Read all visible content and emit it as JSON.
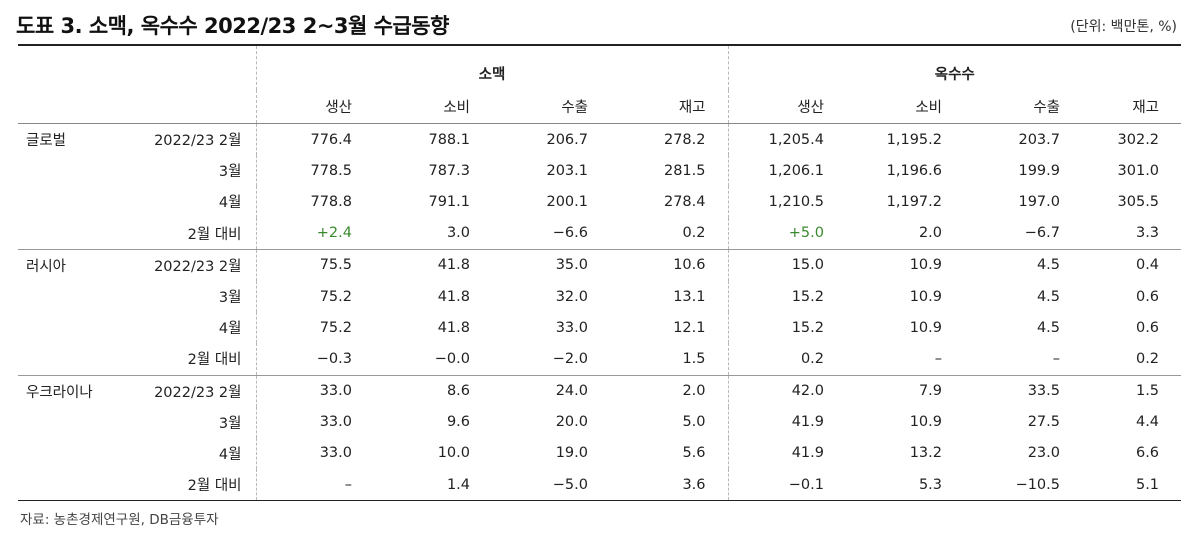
{
  "title": "도표 3. 소맥, 옥수수 2022/23 2~3월 수급동향",
  "unit": "(단위: 백만톤, %)",
  "groups": [
    "소맥",
    "옥수수"
  ],
  "columns": [
    "생산",
    "소비",
    "수출",
    "재고",
    "생산",
    "소비",
    "수출",
    "재고"
  ],
  "blocks": [
    {
      "region": "글로벌",
      "rows": [
        {
          "period": "2022/23 2월",
          "values": [
            "776.4",
            "788.1",
            "206.7",
            "278.2",
            "1,205.4",
            "1,195.2",
            "203.7",
            "302.2"
          ]
        },
        {
          "period": "3월",
          "values": [
            "778.5",
            "787.3",
            "203.1",
            "281.5",
            "1,206.1",
            "1,196.6",
            "199.9",
            "301.0"
          ]
        },
        {
          "period": "4월",
          "values": [
            "778.8",
            "791.1",
            "200.1",
            "278.4",
            "1,210.5",
            "1,197.2",
            "197.0",
            "305.5"
          ]
        },
        {
          "period": "2월 대비",
          "values": [
            "+2.4",
            "3.0",
            "−6.6",
            "0.2",
            "+5.0",
            "2.0",
            "−6.7",
            "3.3"
          ]
        }
      ]
    },
    {
      "region": "러시아",
      "rows": [
        {
          "period": "2022/23 2월",
          "values": [
            "75.5",
            "41.8",
            "35.0",
            "10.6",
            "15.0",
            "10.9",
            "4.5",
            "0.4"
          ]
        },
        {
          "period": "3월",
          "values": [
            "75.2",
            "41.8",
            "32.0",
            "13.1",
            "15.2",
            "10.9",
            "4.5",
            "0.6"
          ]
        },
        {
          "period": "4월",
          "values": [
            "75.2",
            "41.8",
            "33.0",
            "12.1",
            "15.2",
            "10.9",
            "4.5",
            "0.6"
          ]
        },
        {
          "period": "2월 대비",
          "values": [
            "−0.3",
            "−0.0",
            "−2.0",
            "1.5",
            "0.2",
            "–",
            "–",
            "0.2"
          ]
        }
      ]
    },
    {
      "region": "우크라이나",
      "rows": [
        {
          "period": "2022/23 2월",
          "values": [
            "33.0",
            "8.6",
            "24.0",
            "2.0",
            "42.0",
            "7.9",
            "33.5",
            "1.5"
          ]
        },
        {
          "period": "3월",
          "values": [
            "33.0",
            "9.6",
            "20.0",
            "5.0",
            "41.9",
            "10.9",
            "27.5",
            "4.4"
          ]
        },
        {
          "period": "4월",
          "values": [
            "33.0",
            "10.0",
            "19.0",
            "5.6",
            "41.9",
            "13.2",
            "23.0",
            "6.6"
          ]
        },
        {
          "period": "2월 대비",
          "values": [
            "–",
            "1.4",
            "−5.0",
            "3.6",
            "−0.1",
            "5.3",
            "−10.5",
            "5.1"
          ]
        }
      ]
    }
  ],
  "highlight_color": "#3a8a2e",
  "source": "자료: 농촌경제연구원, DB금융투자"
}
